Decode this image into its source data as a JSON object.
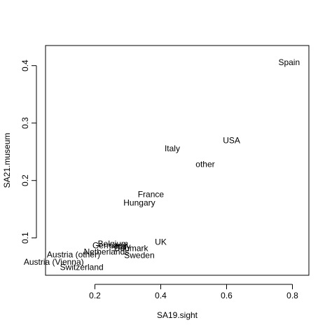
{
  "chart_data": {
    "type": "scatter",
    "title": "",
    "xlabel": "SA19.sight",
    "ylabel": "SA21.museum",
    "xlim": [
      0.05,
      0.85
    ],
    "ylim": [
      0.035,
      0.435
    ],
    "x_ticks": [
      0.2,
      0.4,
      0.6,
      0.8
    ],
    "y_ticks": [
      0.1,
      0.2,
      0.3,
      0.4
    ],
    "x_tick_labels": [
      "0.2",
      "0.4",
      "0.6",
      "0.8"
    ],
    "y_tick_labels": [
      "0.1",
      "0.2",
      "0.3",
      "0.4"
    ],
    "grid": false,
    "legend": "none",
    "marker": "text",
    "points": [
      {
        "label": "Spain",
        "x": 0.79,
        "y": 0.406
      },
      {
        "label": "USA",
        "x": 0.615,
        "y": 0.27
      },
      {
        "label": "Italy",
        "x": 0.435,
        "y": 0.256
      },
      {
        "label": "other",
        "x": 0.535,
        "y": 0.228
      },
      {
        "label": "France",
        "x": 0.37,
        "y": 0.176
      },
      {
        "label": "Hungary",
        "x": 0.335,
        "y": 0.161
      },
      {
        "label": "UK",
        "x": 0.4,
        "y": 0.093
      },
      {
        "label": "Belgium",
        "x": 0.255,
        "y": 0.09
      },
      {
        "label": "Germany",
        "x": 0.245,
        "y": 0.087
      },
      {
        "label": "Italy",
        "x": 0.285,
        "y": 0.085
      },
      {
        "label": "Denmark",
        "x": 0.31,
        "y": 0.082
      },
      {
        "label": "Netherlands",
        "x": 0.235,
        "y": 0.076
      },
      {
        "label": "Sweden",
        "x": 0.335,
        "y": 0.07
      },
      {
        "label": "Austria (other)",
        "x": 0.135,
        "y": 0.071
      },
      {
        "label": "Austria (Vienna)",
        "x": 0.075,
        "y": 0.058
      },
      {
        "label": "Switzerland",
        "x": 0.16,
        "y": 0.049
      }
    ]
  }
}
